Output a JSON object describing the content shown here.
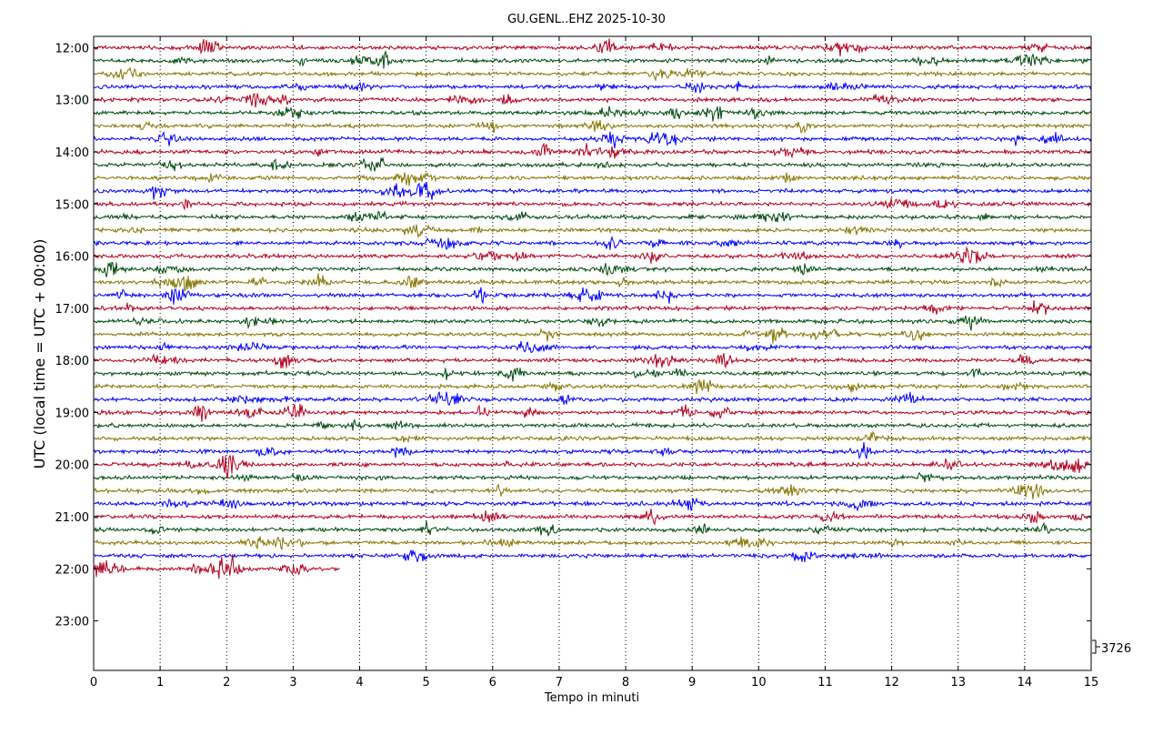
{
  "chart_data": {
    "type": "line",
    "title": "GU.GENL..EHZ 2025-10-30",
    "xlabel": "Tempo in minuti",
    "ylabel": "UTC (local time = UTC + 00:00)",
    "x_ticks": [
      "0",
      "1",
      "2",
      "3",
      "4",
      "5",
      "6",
      "7",
      "8",
      "9",
      "10",
      "11",
      "12",
      "13",
      "14",
      "15"
    ],
    "xlim": [
      0,
      15
    ],
    "y_ticks": [
      "12:00",
      "13:00",
      "14:00",
      "15:00",
      "16:00",
      "17:00",
      "18:00",
      "19:00",
      "20:00",
      "21:00",
      "22:00",
      "23:00"
    ],
    "ylim": [
      "11:47",
      "23:57"
    ],
    "minutes_per_line": 15,
    "first_line": "12:00",
    "line_count": 41,
    "last_line_end_minute": 3.7,
    "scale_label": "3726",
    "grid": "vertical dotted at each minute tick",
    "colors": [
      "#b2001d",
      "#004a0c",
      "#857400",
      "#0000ff"
    ]
  }
}
